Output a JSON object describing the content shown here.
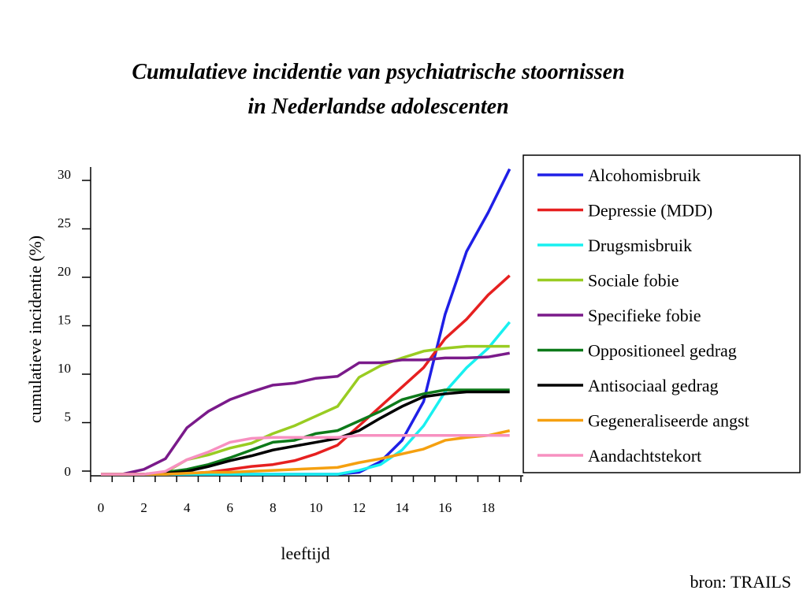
{
  "chart_data": {
    "type": "line",
    "title": "Cumulatieve incidentie van psychiatrische stoornissen",
    "subtitle": "in Nederlandse adolescenten",
    "xlabel": "leeftijd",
    "ylabel": "cumulatieve incidentie (%)",
    "xlim": [
      0,
      19
    ],
    "ylim": [
      0,
      30
    ],
    "x_ticks": [
      "0",
      "2",
      "4",
      "6",
      "8",
      "10",
      "12",
      "14",
      "16",
      "18"
    ],
    "y_ticks": [
      "0",
      "5",
      "10",
      "15",
      "20",
      "25",
      "30"
    ],
    "legend_position": "right",
    "x": [
      0,
      1,
      2,
      3,
      4,
      5,
      6,
      7,
      8,
      9,
      10,
      11,
      12,
      13,
      14,
      15,
      16,
      17,
      18,
      19
    ],
    "series": [
      {
        "name": "Alcohomisbruik",
        "color": "#1f1fe6",
        "values": [
          0,
          0,
          0,
          0,
          0,
          0,
          0,
          0,
          0,
          0,
          0,
          0,
          0.2,
          1.3,
          3.5,
          7.5,
          16.5,
          23,
          27,
          31.5
        ]
      },
      {
        "name": "Depressie (MDD)",
        "color": "#e62020",
        "values": [
          0,
          0,
          0,
          0,
          0.1,
          0.2,
          0.5,
          0.8,
          1.0,
          1.4,
          2.1,
          3.0,
          5.0,
          7.0,
          9.0,
          11.0,
          14.0,
          16.0,
          18.5,
          20.5
        ]
      },
      {
        "name": "Drugsmisbruik",
        "color": "#18f0f0",
        "values": [
          0,
          0,
          0,
          0,
          0,
          0,
          0,
          0,
          0,
          0,
          0,
          0,
          0.4,
          1.0,
          2.5,
          5.0,
          8.5,
          11.0,
          13.0,
          15.7
        ]
      },
      {
        "name": "Sociale fobie",
        "color": "#99cc22",
        "values": [
          0,
          0,
          0,
          0.2,
          1.5,
          2.0,
          2.7,
          3.2,
          4.2,
          5.0,
          6.0,
          7.0,
          10.0,
          11.2,
          12.0,
          12.7,
          13.0,
          13.2,
          13.2,
          13.2
        ]
      },
      {
        "name": "Specifieke fobie",
        "color": "#7a1a8a",
        "values": [
          0,
          0,
          0.5,
          1.6,
          4.8,
          6.5,
          7.7,
          8.5,
          9.2,
          9.4,
          9.9,
          10.1,
          11.5,
          11.5,
          11.8,
          11.8,
          12.0,
          12.0,
          12.1,
          12.5
        ]
      },
      {
        "name": "Oppositioneel gedrag",
        "color": "#0d7a1a",
        "values": [
          0,
          0,
          0,
          0.2,
          0.5,
          1.0,
          1.7,
          2.5,
          3.3,
          3.5,
          4.2,
          4.5,
          5.5,
          6.5,
          7.7,
          8.3,
          8.7,
          8.7,
          8.7,
          8.7
        ]
      },
      {
        "name": "Antisociaal gedrag",
        "color": "#000000",
        "values": [
          0,
          0,
          0,
          0.1,
          0.3,
          0.8,
          1.4,
          1.9,
          2.5,
          2.9,
          3.3,
          3.7,
          4.5,
          5.8,
          7.0,
          8.0,
          8.3,
          8.5,
          8.5,
          8.5
        ]
      },
      {
        "name": "Gegeneraliseerde angst",
        "color": "#f5a010",
        "values": [
          0,
          0,
          0,
          0,
          0.1,
          0.2,
          0.2,
          0.3,
          0.4,
          0.5,
          0.6,
          0.7,
          1.2,
          1.6,
          2.1,
          2.6,
          3.5,
          3.8,
          4.0,
          4.5
        ]
      },
      {
        "name": "Aandachtstekort",
        "color": "#f790c0",
        "values": [
          0,
          0,
          0,
          0.3,
          1.5,
          2.3,
          3.3,
          3.7,
          3.8,
          3.8,
          3.8,
          3.8,
          4.0,
          4.0,
          4.0,
          4.0,
          4.0,
          4.0,
          4.0,
          4.0
        ]
      }
    ]
  },
  "source": "bron: TRAILS"
}
